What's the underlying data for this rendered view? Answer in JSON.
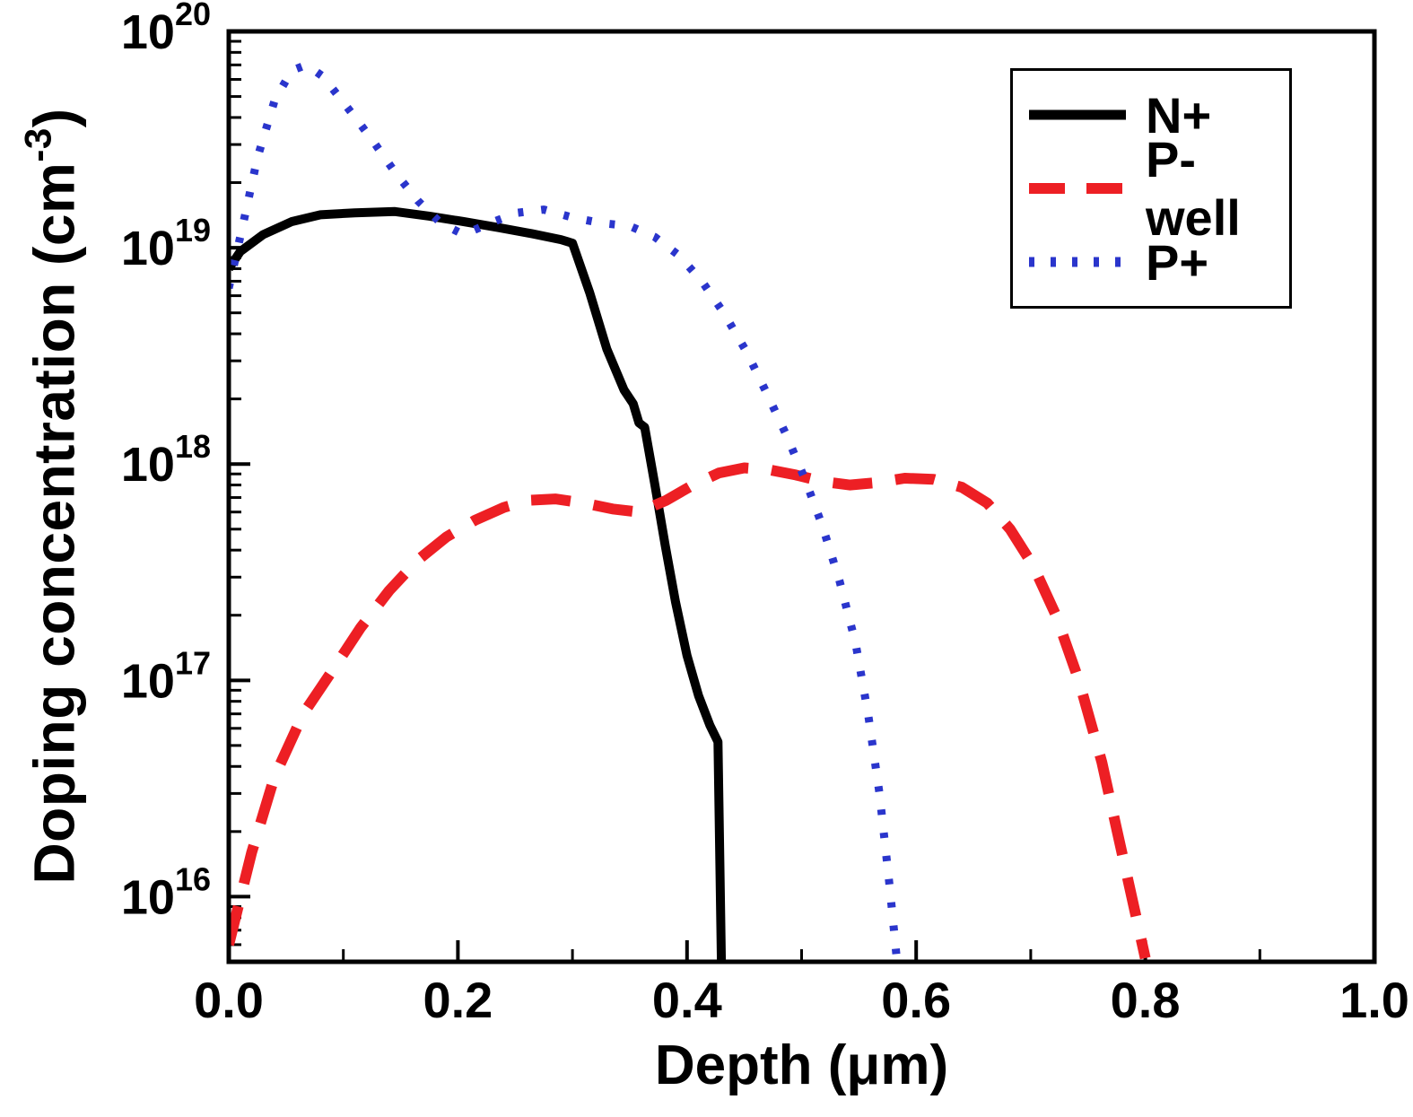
{
  "figure": {
    "background": "#ffffff"
  },
  "chart_data": {
    "type": "line",
    "title": "",
    "xlabel": "Depth (μm)",
    "ylabel": "Doping concentration (cm⁻³)",
    "ylabel_parts": {
      "prefix": "Doping concentration (cm",
      "sup": "-3",
      "suffix": ")"
    },
    "grid": false,
    "x_axis": {
      "min": 0.0,
      "max": 1.0,
      "major_ticks": [
        0.0,
        0.2,
        0.4,
        0.6,
        0.8,
        1.0
      ],
      "tick_labels": [
        "0.0",
        "0.2",
        "0.4",
        "0.6",
        "0.8",
        "1.0"
      ],
      "minor_ticks": [
        0.1,
        0.3,
        0.5,
        0.7,
        0.9
      ]
    },
    "y_axis": {
      "scale": "log",
      "min": 5000000000000000.0,
      "max": 1e+20,
      "tick_base": "10",
      "major_tick_exponents": [
        16,
        17,
        18,
        19,
        20
      ],
      "minor_decades": [
        15,
        16,
        17,
        18,
        19
      ]
    },
    "legend": {
      "position": "top-right",
      "border": true
    },
    "series": [
      {
        "name": "N+",
        "color": "#000000",
        "style": "solid",
        "width": 10,
        "points": [
          [
            0.0,
            8e+18
          ],
          [
            0.01,
            9.6e+18
          ],
          [
            0.03,
            1.15e+19
          ],
          [
            0.055,
            1.32e+19
          ],
          [
            0.08,
            1.42e+19
          ],
          [
            0.11,
            1.45e+19
          ],
          [
            0.145,
            1.47e+19
          ],
          [
            0.175,
            1.4e+19
          ],
          [
            0.205,
            1.32e+19
          ],
          [
            0.235,
            1.24e+19
          ],
          [
            0.265,
            1.16e+19
          ],
          [
            0.29,
            1.09e+19
          ],
          [
            0.3,
            1.05e+19
          ],
          [
            0.315,
            6.2e+18
          ],
          [
            0.33,
            3.4e+18
          ],
          [
            0.345,
            2.2e+18
          ],
          [
            0.353,
            1.9e+18
          ],
          [
            0.358,
            1.55e+18
          ],
          [
            0.363,
            1.48e+18
          ],
          [
            0.372,
            8e+17
          ],
          [
            0.381,
            4.2e+17
          ],
          [
            0.39,
            2.3e+17
          ],
          [
            0.4,
            1.3e+17
          ],
          [
            0.41,
            8.5e+16
          ],
          [
            0.42,
            6.2e+16
          ],
          [
            0.427,
            5.2e+16
          ],
          [
            0.43,
            5000000000000000.0
          ]
        ]
      },
      {
        "name": "P-well",
        "color": "#ed1f24",
        "style": "dashed",
        "width": 12,
        "points": [
          [
            0.0,
            6000000000000000.0
          ],
          [
            0.02,
            1.6e+16
          ],
          [
            0.04,
            3.6e+16
          ],
          [
            0.065,
            7e+16
          ],
          [
            0.09,
            1.1e+17
          ],
          [
            0.115,
            1.75e+17
          ],
          [
            0.14,
            2.6e+17
          ],
          [
            0.165,
            3.6e+17
          ],
          [
            0.19,
            4.6e+17
          ],
          [
            0.215,
            5.5e+17
          ],
          [
            0.24,
            6.3e+17
          ],
          [
            0.262,
            6.8e+17
          ],
          [
            0.285,
            6.9e+17
          ],
          [
            0.31,
            6.6e+17
          ],
          [
            0.335,
            6.2e+17
          ],
          [
            0.358,
            6e+17
          ],
          [
            0.382,
            6.8e+17
          ],
          [
            0.405,
            8e+17
          ],
          [
            0.428,
            9.1e+17
          ],
          [
            0.45,
            9.6e+17
          ],
          [
            0.472,
            9.4e+17
          ],
          [
            0.495,
            8.9e+17
          ],
          [
            0.518,
            8.3e+17
          ],
          [
            0.542,
            8e+17
          ],
          [
            0.565,
            8.2e+17
          ],
          [
            0.59,
            8.6e+17
          ],
          [
            0.615,
            8.5e+17
          ],
          [
            0.64,
            7.8e+17
          ],
          [
            0.662,
            6.6e+17
          ],
          [
            0.682,
            5e+17
          ],
          [
            0.702,
            3.4e+17
          ],
          [
            0.722,
            2e+17
          ],
          [
            0.742,
            1e+17
          ],
          [
            0.762,
            4.2e+16
          ],
          [
            0.782,
            1.4e+16
          ],
          [
            0.8,
            5200000000000000.0
          ]
        ]
      },
      {
        "name": "P+",
        "color": "#2a35cc",
        "style": "dotted",
        "width": 9,
        "points": [
          [
            0.0,
            6.5e+18
          ],
          [
            0.012,
            1.25e+19
          ],
          [
            0.025,
            2.6e+19
          ],
          [
            0.04,
            4.8e+19
          ],
          [
            0.055,
            6.6e+19
          ],
          [
            0.068,
            7e+19
          ],
          [
            0.082,
            6.2e+19
          ],
          [
            0.096,
            5e+19
          ],
          [
            0.112,
            3.9e+19
          ],
          [
            0.128,
            3e+19
          ],
          [
            0.146,
            2.2e+19
          ],
          [
            0.165,
            1.65e+19
          ],
          [
            0.185,
            1.3e+19
          ],
          [
            0.205,
            1.15e+19
          ],
          [
            0.228,
            1.3e+19
          ],
          [
            0.252,
            1.45e+19
          ],
          [
            0.275,
            1.5e+19
          ],
          [
            0.3,
            1.38e+19
          ],
          [
            0.325,
            1.3e+19
          ],
          [
            0.35,
            1.26e+19
          ],
          [
            0.372,
            1.12e+19
          ],
          [
            0.393,
            9.2e+18
          ],
          [
            0.413,
            7e+18
          ],
          [
            0.432,
            5e+18
          ],
          [
            0.452,
            3.3e+18
          ],
          [
            0.47,
            2.1e+18
          ],
          [
            0.487,
            1.35e+18
          ],
          [
            0.503,
            8.5e+17
          ],
          [
            0.518,
            5.2e+17
          ],
          [
            0.533,
            2.9e+17
          ],
          [
            0.547,
            1.5e+17
          ],
          [
            0.558,
            7e+16
          ],
          [
            0.568,
            3e+16
          ],
          [
            0.577,
            1.1e+16
          ],
          [
            0.583,
            5200000000000000.0
          ]
        ]
      }
    ]
  }
}
